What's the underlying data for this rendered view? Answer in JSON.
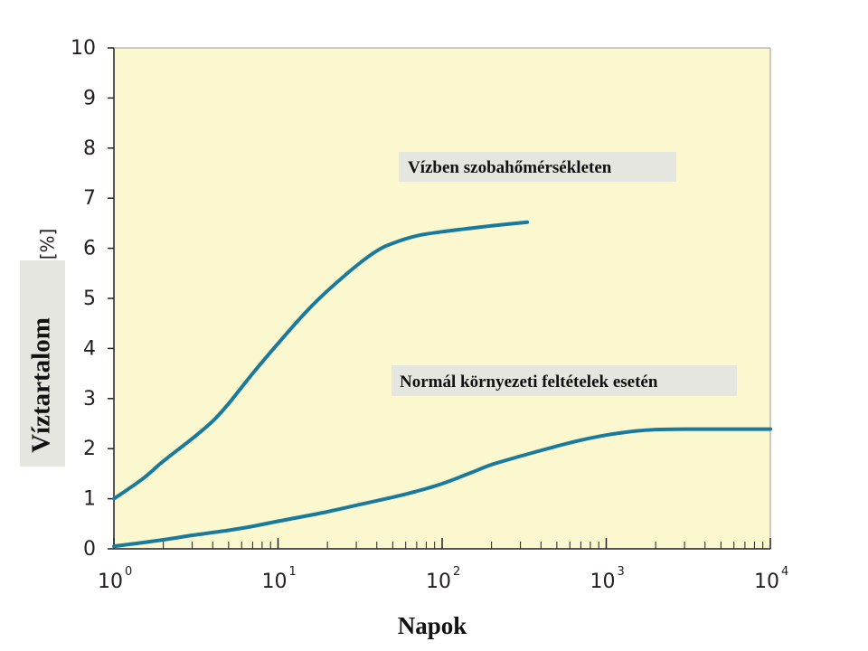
{
  "chart_data": {
    "type": "line",
    "title": "",
    "xlabel": "Napok",
    "ylabel": "Víztartalom",
    "yunit": "[%]",
    "xscale": "log",
    "xlim": [
      1,
      10000
    ],
    "ylim": [
      0,
      10
    ],
    "grid": false,
    "background": "#fbf7cf",
    "x_ticks": [
      {
        "base": "10",
        "exp": "0",
        "value": 1
      },
      {
        "base": "10",
        "exp": "1",
        "value": 10
      },
      {
        "base": "10",
        "exp": "2",
        "value": 100
      },
      {
        "base": "10",
        "exp": "3",
        "value": 1000
      },
      {
        "base": "10",
        "exp": "4",
        "value": 10000
      }
    ],
    "y_ticks": [
      "0",
      "1",
      "2",
      "3",
      "4",
      "5",
      "6",
      "7",
      "8",
      "9",
      "10"
    ],
    "series": [
      {
        "name": "Vízben szobahőmérsékleten",
        "color": "#1a7a9e",
        "x": [
          1,
          1.5,
          2,
          3,
          4,
          5,
          7,
          10,
          15,
          20,
          30,
          40,
          50,
          70,
          100,
          150,
          200,
          330
        ],
        "y": [
          1.0,
          1.4,
          1.75,
          2.2,
          2.55,
          2.9,
          3.5,
          4.1,
          4.75,
          5.15,
          5.65,
          5.95,
          6.1,
          6.25,
          6.33,
          6.4,
          6.45,
          6.52
        ]
      },
      {
        "name": "Normál környezeti feltételek esetén",
        "color": "#1a7a9e",
        "x": [
          1,
          2,
          3,
          5,
          7,
          10,
          20,
          30,
          50,
          70,
          100,
          150,
          200,
          300,
          500,
          700,
          1000,
          1500,
          2000,
          3000,
          5000,
          10000
        ],
        "y": [
          0.05,
          0.18,
          0.27,
          0.37,
          0.45,
          0.55,
          0.74,
          0.87,
          1.03,
          1.15,
          1.3,
          1.52,
          1.68,
          1.85,
          2.05,
          2.17,
          2.27,
          2.35,
          2.38,
          2.39,
          2.39,
          2.39
        ]
      }
    ]
  }
}
